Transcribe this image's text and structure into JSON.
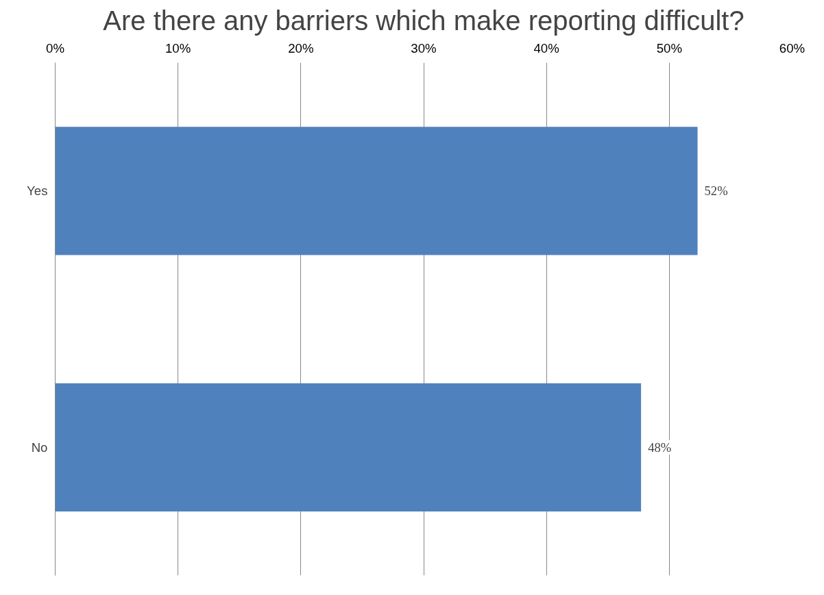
{
  "chart_data": {
    "type": "bar",
    "orientation": "horizontal",
    "title": "Are there any barriers which make reporting difficult?",
    "categories": [
      "Yes",
      "No"
    ],
    "values": [
      52.3,
      47.7
    ],
    "value_labels": [
      "52%",
      "48%"
    ],
    "color": "#4f81bd",
    "xlim": [
      0,
      60
    ],
    "xticks": [
      {
        "value": 0,
        "label": "0%"
      },
      {
        "value": 10,
        "label": "10%"
      },
      {
        "value": 20,
        "label": "20%"
      },
      {
        "value": 30,
        "label": "30%"
      },
      {
        "value": 40,
        "label": "40%"
      },
      {
        "value": 50,
        "label": "50%"
      },
      {
        "value": 60,
        "label": "60%"
      }
    ],
    "grid": "x"
  }
}
